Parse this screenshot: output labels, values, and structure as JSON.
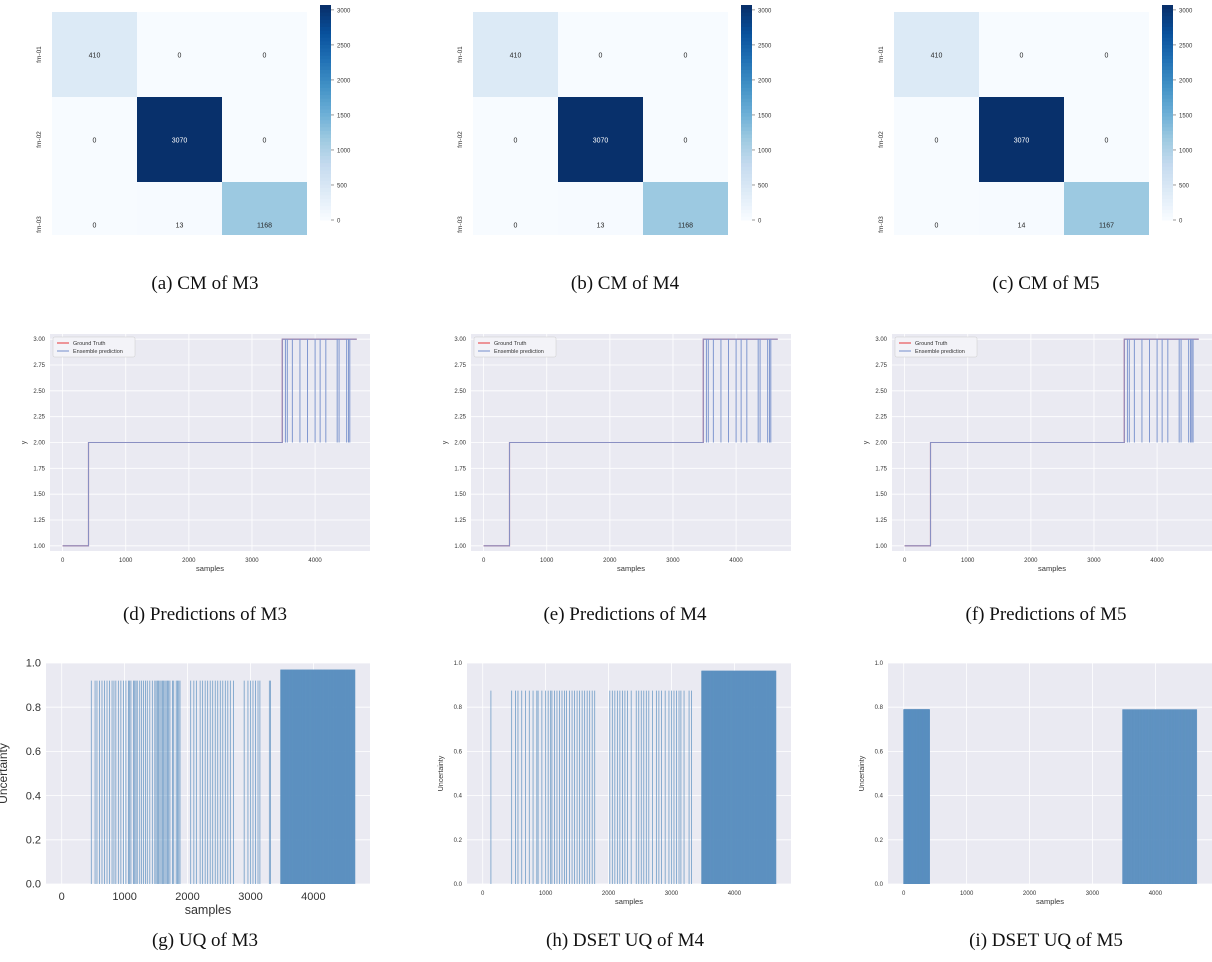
{
  "figure": {
    "captions": [
      "(a) CM of M3",
      "(b) CM of M4",
      "(c) CM of M5",
      "(d) Predictions of M3",
      "(e) Predictions of M4",
      "(f) Predictions of M5",
      "(g) UQ of M3",
      "(h) DSET UQ of M4",
      "(i) DSET UQ of M5"
    ]
  },
  "colors": {
    "plot_bg": "#eaeaf2",
    "grid": "#ffffff",
    "ground_truth": "#e8474a",
    "ensemble": "#7f97cf",
    "uq_bar": "#5b8fc0",
    "heat_low": "#f7fbff",
    "heat_high": "#08306b"
  },
  "chart_data": [
    {
      "type": "heatmap",
      "classes": [
        "fm-01",
        "fm-02",
        "fm-03"
      ],
      "matrix": [
        [
          410,
          0,
          0
        ],
        [
          0,
          3070,
          0
        ],
        [
          0,
          13,
          1168
        ]
      ],
      "colorbar_ticks": [
        0,
        500,
        1000,
        1500,
        2000,
        2500,
        3000
      ],
      "vmin": 0,
      "vmax": 3070
    },
    {
      "type": "heatmap",
      "classes": [
        "fm-01",
        "fm-02",
        "fm-03"
      ],
      "matrix": [
        [
          410,
          0,
          0
        ],
        [
          0,
          3070,
          0
        ],
        [
          0,
          13,
          1168
        ]
      ],
      "colorbar_ticks": [
        0,
        500,
        1000,
        1500,
        2000,
        2500,
        3000
      ],
      "vmin": 0,
      "vmax": 3070
    },
    {
      "type": "heatmap",
      "classes": [
        "fm-01",
        "fm-02",
        "fm-03"
      ],
      "matrix": [
        [
          410,
          0,
          0
        ],
        [
          0,
          3070,
          0
        ],
        [
          0,
          14,
          1167
        ]
      ],
      "colorbar_ticks": [
        0,
        500,
        1000,
        1500,
        2000,
        2500,
        3000
      ],
      "vmin": 0,
      "vmax": 3070
    },
    {
      "type": "line",
      "xlabel": "samples",
      "ylabel": "y",
      "xlim": [
        -200,
        4870
      ],
      "ylim": [
        0.95,
        3.05
      ],
      "xticks": [
        0,
        1000,
        2000,
        3000,
        4000
      ],
      "yticks": [
        "1.00",
        "1.25",
        "1.50",
        "1.75",
        "2.00",
        "2.25",
        "2.50",
        "2.75",
        "3.00"
      ],
      "legend": [
        "Ground Truth",
        "Ensemble prediction"
      ],
      "legend_position": "top-left",
      "series": [
        {
          "name": "Ground Truth",
          "points": [
            [
              0,
              1
            ],
            [
              410,
              1
            ],
            [
              410,
              2
            ],
            [
              3480,
              2
            ],
            [
              3480,
              3
            ],
            [
              4660,
              3
            ]
          ]
        },
        {
          "name": "Ensemble prediction",
          "points": [
            [
              0,
              1
            ],
            [
              410,
              1
            ],
            [
              410,
              2
            ],
            [
              3480,
              2
            ],
            [
              3480,
              3
            ],
            [
              4660,
              3
            ]
          ],
          "dips": [
            3530,
            3560,
            3640,
            3760,
            3880,
            4000,
            4080,
            4170,
            4350,
            4380,
            4500,
            4530,
            4550
          ]
        }
      ]
    },
    {
      "type": "line",
      "xlabel": "samples",
      "ylabel": "y",
      "xlim": [
        -200,
        4870
      ],
      "ylim": [
        0.95,
        3.05
      ],
      "xticks": [
        0,
        1000,
        2000,
        3000,
        4000
      ],
      "yticks": [
        "1.00",
        "1.25",
        "1.50",
        "1.75",
        "2.00",
        "2.25",
        "2.50",
        "2.75",
        "3.00"
      ],
      "legend": [
        "Ground Truth",
        "Ensemble prediction"
      ],
      "legend_position": "top-left",
      "series": [
        {
          "name": "Ground Truth",
          "points": [
            [
              0,
              1
            ],
            [
              410,
              1
            ],
            [
              410,
              2
            ],
            [
              3480,
              2
            ],
            [
              3480,
              3
            ],
            [
              4660,
              3
            ]
          ]
        },
        {
          "name": "Ensemble prediction",
          "points": [
            [
              0,
              1
            ],
            [
              410,
              1
            ],
            [
              410,
              2
            ],
            [
              3480,
              2
            ],
            [
              3480,
              3
            ],
            [
              4660,
              3
            ]
          ],
          "dips": [
            3530,
            3560,
            3640,
            3760,
            3880,
            4000,
            4080,
            4170,
            4350,
            4380,
            4500,
            4530,
            4550
          ]
        }
      ]
    },
    {
      "type": "line",
      "xlabel": "samples",
      "ylabel": "y",
      "xlim": [
        -200,
        4870
      ],
      "ylim": [
        0.95,
        3.05
      ],
      "xticks": [
        0,
        1000,
        2000,
        3000,
        4000
      ],
      "yticks": [
        "1.00",
        "1.25",
        "1.50",
        "1.75",
        "2.00",
        "2.25",
        "2.50",
        "2.75",
        "3.00"
      ],
      "legend": [
        "Ground Truth",
        "Ensemble prediction"
      ],
      "legend_position": "top-left",
      "series": [
        {
          "name": "Ground Truth",
          "points": [
            [
              0,
              1
            ],
            [
              410,
              1
            ],
            [
              410,
              2
            ],
            [
              3480,
              2
            ],
            [
              3480,
              3
            ],
            [
              4660,
              3
            ]
          ]
        },
        {
          "name": "Ensemble prediction",
          "points": [
            [
              0,
              1
            ],
            [
              410,
              1
            ],
            [
              410,
              2
            ],
            [
              3480,
              2
            ],
            [
              3480,
              3
            ],
            [
              4660,
              3
            ]
          ],
          "dips": [
            3530,
            3560,
            3640,
            3760,
            3880,
            4000,
            4080,
            4170,
            4350,
            4380,
            4500,
            4530,
            4550,
            4570
          ]
        }
      ]
    },
    {
      "type": "bar",
      "xlabel": "samples",
      "ylabel": "Uncertainty",
      "xlim": [
        -250,
        4900
      ],
      "ylim": [
        0.0,
        1.0
      ],
      "xticks": [
        0,
        1000,
        2000,
        3000,
        4000
      ],
      "yticks": [
        "0.0",
        "0.2",
        "0.4",
        "0.6",
        "0.8",
        "1.0"
      ],
      "series": [
        {
          "height": 0.92,
          "x": [
            470,
            530,
            560,
            600,
            640,
            680,
            720,
            760,
            800,
            830,
            860,
            900,
            940,
            980,
            1020,
            1060,
            1080,
            1100,
            1140,
            1160,
            1180,
            1200,
            1240,
            1270,
            1300,
            1330,
            1360,
            1400,
            1440,
            1480,
            1500,
            1520,
            1540,
            1560,
            1580,
            1600,
            1620,
            1640,
            1660,
            1680,
            1700,
            1720,
            1760,
            1780,
            1820,
            1840,
            1860,
            1880,
            2050,
            2100,
            2140,
            2200,
            2240,
            2280,
            2320,
            2360,
            2400,
            2440,
            2480,
            2520,
            2560,
            2600,
            2640,
            2680,
            2730,
            2900,
            2960,
            3000,
            3040,
            3080,
            3120,
            3150,
            3300,
            3320
          ]
        },
        {
          "height": 0.97,
          "x_range": [
            3480,
            4660
          ],
          "step": 5
        }
      ]
    },
    {
      "type": "bar",
      "xlabel": "samples",
      "ylabel": "Uncertainty",
      "xlim": [
        -250,
        4900
      ],
      "ylim": [
        0.0,
        1.0
      ],
      "xticks": [
        0,
        1000,
        2000,
        3000,
        4000
      ],
      "yticks": [
        "0.0",
        "0.2",
        "0.4",
        "0.6",
        "0.8",
        "1.0"
      ],
      "series": [
        {
          "height": 0.875,
          "x": [
            130,
            460,
            520,
            560,
            620,
            680,
            740,
            800,
            860,
            880,
            940,
            1000,
            1040,
            1080,
            1100,
            1140,
            1180,
            1220,
            1260,
            1300,
            1330,
            1380,
            1420,
            1460,
            1500,
            1540,
            1580,
            1620,
            1660,
            1700,
            1740,
            1780,
            2020,
            2060,
            2100,
            2140,
            2180,
            2220,
            2260,
            2300,
            2360,
            2440,
            2480,
            2520,
            2560,
            2600,
            2640,
            2700,
            2760,
            2800,
            2840,
            2900,
            2960,
            3000,
            3040,
            3080,
            3120,
            3150,
            3200,
            3280,
            3320
          ]
        },
        {
          "height": 0.965,
          "x_range": [
            3480,
            4660
          ],
          "step": 5
        }
      ]
    },
    {
      "type": "bar",
      "xlabel": "samples",
      "ylabel": "Uncertainty",
      "xlim": [
        -250,
        4900
      ],
      "ylim": [
        0.0,
        1.0
      ],
      "xticks": [
        0,
        1000,
        2000,
        3000,
        4000
      ],
      "yticks": [
        "0.0",
        "0.2",
        "0.4",
        "0.6",
        "0.8",
        "1.0"
      ],
      "series": [
        {
          "height": 0.79,
          "x_range": [
            0,
            410
          ],
          "step": 2
        },
        {
          "height": 0.79,
          "x_range": [
            3480,
            4660
          ],
          "step": 6
        }
      ]
    }
  ]
}
